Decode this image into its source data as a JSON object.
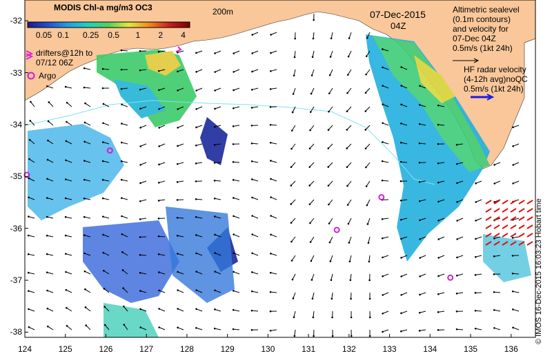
{
  "title": {
    "date": "07-Dec-2015",
    "time": "04Z",
    "contour_label": "200m"
  },
  "colorbar": {
    "title": "MODIS Chl-a mg/m3 OC3",
    "ticks": [
      "0.05",
      "0.1",
      "0.25",
      "0.5",
      "1",
      "2",
      "4"
    ],
    "colors": [
      "#1a1a8c",
      "#1f4fd6",
      "#1fa0e6",
      "#1ed2c0",
      "#52d25a",
      "#e6e63a",
      "#f08a1f",
      "#c81e1e",
      "#7a0000"
    ]
  },
  "legend": {
    "drifters": "drifters@12h to",
    "drifters_line2": "07/12 06Z",
    "argo": "Argo",
    "altimetry_lines": [
      "Altimetric sealevel",
      "(0.1m contours)",
      "and velocity for",
      "07-Dec 04Z",
      "0.5m/s (1kt 24h)"
    ],
    "hf_lines": [
      "HF radar velocity",
      "(4-12h avg)noQC",
      "0.5m/s (1kt 24h)"
    ],
    "marker_colors": {
      "drifter": "#e020e0",
      "argo": "#d21ed2",
      "hf_radar": "#1a1ae6",
      "hf_vectors": "#e01010"
    }
  },
  "axes": {
    "x_ticks": [
      "124",
      "125",
      "126",
      "127",
      "128",
      "129",
      "130",
      "131",
      "132",
      "133",
      "134",
      "135",
      "136"
    ],
    "y_ticks": [
      "-32",
      "-33",
      "-34",
      "-35",
      "-36",
      "-37",
      "-38"
    ],
    "lon_range": [
      124,
      136.6
    ],
    "lat_range": [
      -38.1,
      -31.6
    ]
  },
  "credit": "© IMOS 16-Dec-2015 16:03:23 Hobart time",
  "argo_floats": [
    {
      "lon": 124.05,
      "lat": -34.97
    },
    {
      "lon": 126.1,
      "lat": -34.5
    },
    {
      "lon": 131.7,
      "lat": -36.03
    },
    {
      "lon": 132.8,
      "lat": -35.4
    },
    {
      "lon": 134.5,
      "lat": -36.95
    }
  ],
  "colors": {
    "land": "#f9c79a",
    "ocean": "#ffffff",
    "contour": "#7de3f0"
  }
}
